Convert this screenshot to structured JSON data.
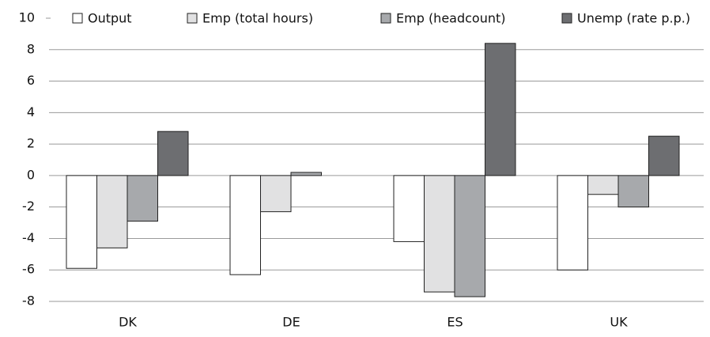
{
  "chart_data": {
    "type": "bar",
    "categories": [
      "DK",
      "DE",
      "ES",
      "UK"
    ],
    "series": [
      {
        "name": "Output",
        "color": "#ffffff",
        "values": [
          -5.9,
          -6.3,
          -4.2,
          -6.0
        ]
      },
      {
        "name": "Emp (total hours)",
        "color": "#e1e1e2",
        "values": [
          -4.6,
          -2.3,
          -7.4,
          -1.2
        ]
      },
      {
        "name": "Emp (headcount)",
        "color": "#a7a9ac",
        "values": [
          -2.9,
          0.2,
          -7.7,
          -2.0
        ]
      },
      {
        "name": "Unemp (rate p.p.)",
        "color": "#6d6e71",
        "values": [
          2.8,
          0,
          8.4,
          2.5
        ]
      }
    ],
    "ylim": [
      -8,
      10
    ],
    "yticks": [
      -8,
      -6,
      -4,
      -2,
      0,
      2,
      4,
      6,
      8,
      10
    ],
    "grid": true
  }
}
